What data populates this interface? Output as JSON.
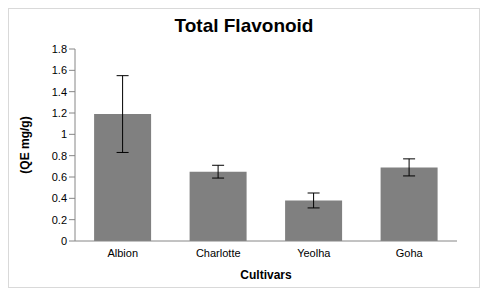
{
  "chart_data": {
    "type": "bar",
    "title": "Total Flavonoid",
    "x_label": "Cultivars",
    "y_label": "(QE mg/g)",
    "categories": [
      "Albion",
      "Charlotte",
      "Yeolha",
      "Goha"
    ],
    "values": [
      1.19,
      0.65,
      0.38,
      0.69
    ],
    "errors": [
      0.36,
      0.06,
      0.07,
      0.08
    ],
    "color": "#808080",
    "ylim": [
      0,
      1.8
    ],
    "yticks": [
      0,
      0.2,
      0.4,
      0.6,
      0.8,
      1,
      1.2,
      1.4,
      1.6,
      1.8
    ],
    "grid": false
  }
}
